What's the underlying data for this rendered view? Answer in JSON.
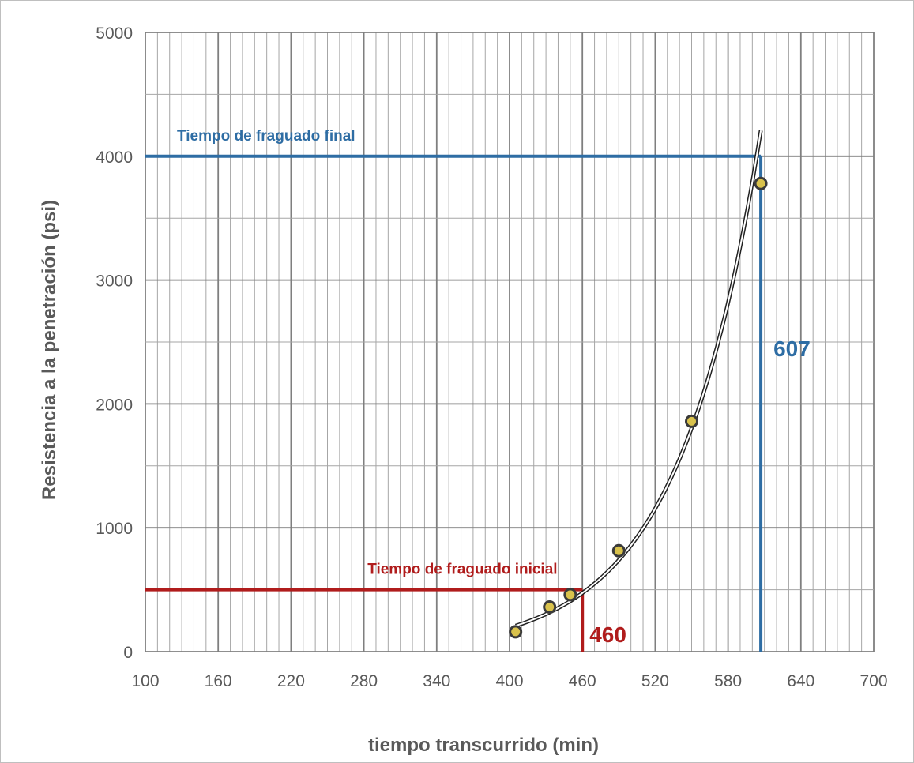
{
  "chart_data": {
    "type": "scatter",
    "xlabel": "tiempo transcurrido  (min)",
    "ylabel": "Resistencia a la penetración (psi)",
    "xlim": [
      100,
      700
    ],
    "ylim": [
      0,
      5000
    ],
    "x_ticks": [
      100,
      160,
      220,
      280,
      340,
      400,
      460,
      520,
      580,
      640,
      700
    ],
    "y_ticks": [
      0,
      1000,
      2000,
      3000,
      4000,
      5000
    ],
    "x_minor_step": 10,
    "y_minor_step": 500,
    "grid": true,
    "series": [
      {
        "points": [
          {
            "x": 405,
            "y": 160
          },
          {
            "x": 433,
            "y": 360
          },
          {
            "x": 450,
            "y": 460
          },
          {
            "x": 490,
            "y": 815
          },
          {
            "x": 550,
            "y": 1860
          },
          {
            "x": 607,
            "y": 3780
          }
        ],
        "trend": "exponential"
      }
    ],
    "annotations": [
      {
        "label": "Tiempo de fraguado final",
        "y": 4000,
        "x": 607,
        "value_label": "607",
        "color": "#2e6da4"
      },
      {
        "label": "Tiempo de fraguado inicial",
        "y": 500,
        "x": 460,
        "value_label": "460",
        "color": "#b01c1c"
      }
    ],
    "colors": {
      "final": "#2e6da4",
      "initial": "#b01c1c",
      "grid": "#8c8c8c",
      "marker": "#d9c24c"
    }
  }
}
